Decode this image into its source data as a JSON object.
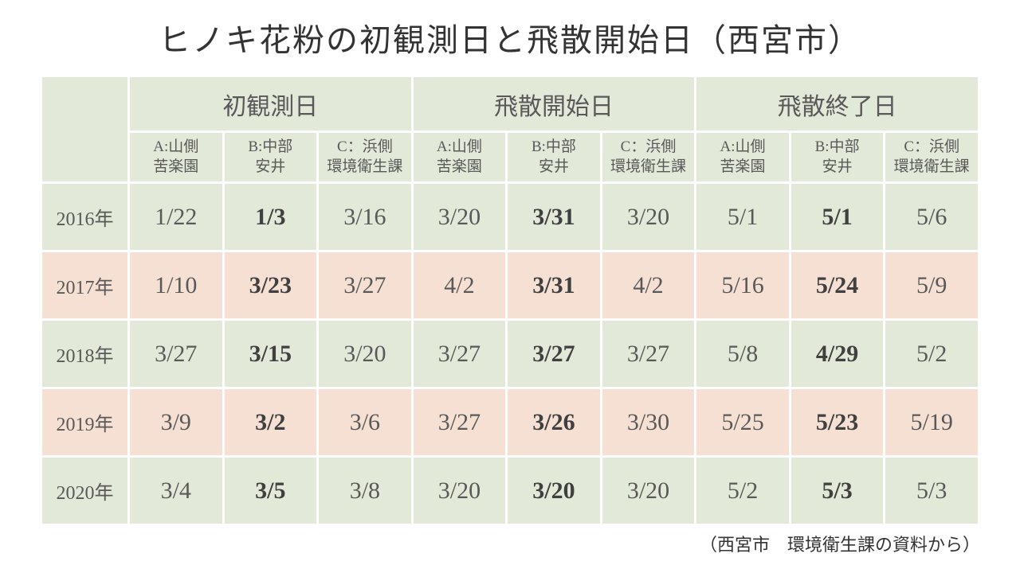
{
  "title": "ヒノキ花粉の初観測日と飛散開始日（西宮市）",
  "source": "（西宮市　環境衛生課の資料から）",
  "groups": [
    "初観測日",
    "飛散開始日",
    "飛散終了日"
  ],
  "subheaders": {
    "a": {
      "line1": "A:山側",
      "line2": "苦楽園"
    },
    "b": {
      "line1": "B:中部",
      "line2": "安井"
    },
    "c": {
      "line1": "C：浜側",
      "line2": "環境衛生課"
    }
  },
  "years": [
    "2016年",
    "2017年",
    "2018年",
    "2019年",
    "2020年"
  ],
  "rows": [
    {
      "d": [
        "1/22",
        "1/3",
        "3/16",
        "3/20",
        "3/31",
        "3/20",
        "5/1",
        "5/1",
        "5/6"
      ]
    },
    {
      "d": [
        "1/10",
        "3/23",
        "3/27",
        "4/2",
        "3/31",
        "4/2",
        "5/16",
        "5/24",
        "5/9"
      ]
    },
    {
      "d": [
        "3/27",
        "3/15",
        "3/20",
        "3/27",
        "3/27",
        "3/27",
        "5/8",
        "4/29",
        "5/2"
      ]
    },
    {
      "d": [
        "3/9",
        "3/2",
        "3/6",
        "3/27",
        "3/26",
        "3/30",
        "5/25",
        "5/23",
        "5/19"
      ]
    },
    {
      "d": [
        "3/4",
        "3/5",
        "3/8",
        "3/20",
        "3/20",
        "3/20",
        "5/2",
        "5/3",
        "5/3"
      ]
    }
  ],
  "boldCols": [
    1,
    4,
    7
  ],
  "rowColors": [
    "row-green",
    "row-orange",
    "row-green",
    "row-orange",
    "row-green"
  ],
  "colors": {
    "green": "#e2e9d8",
    "orange": "#f6e0d4",
    "text": "#595959",
    "title": "#333333",
    "bg": "#ffffff"
  }
}
